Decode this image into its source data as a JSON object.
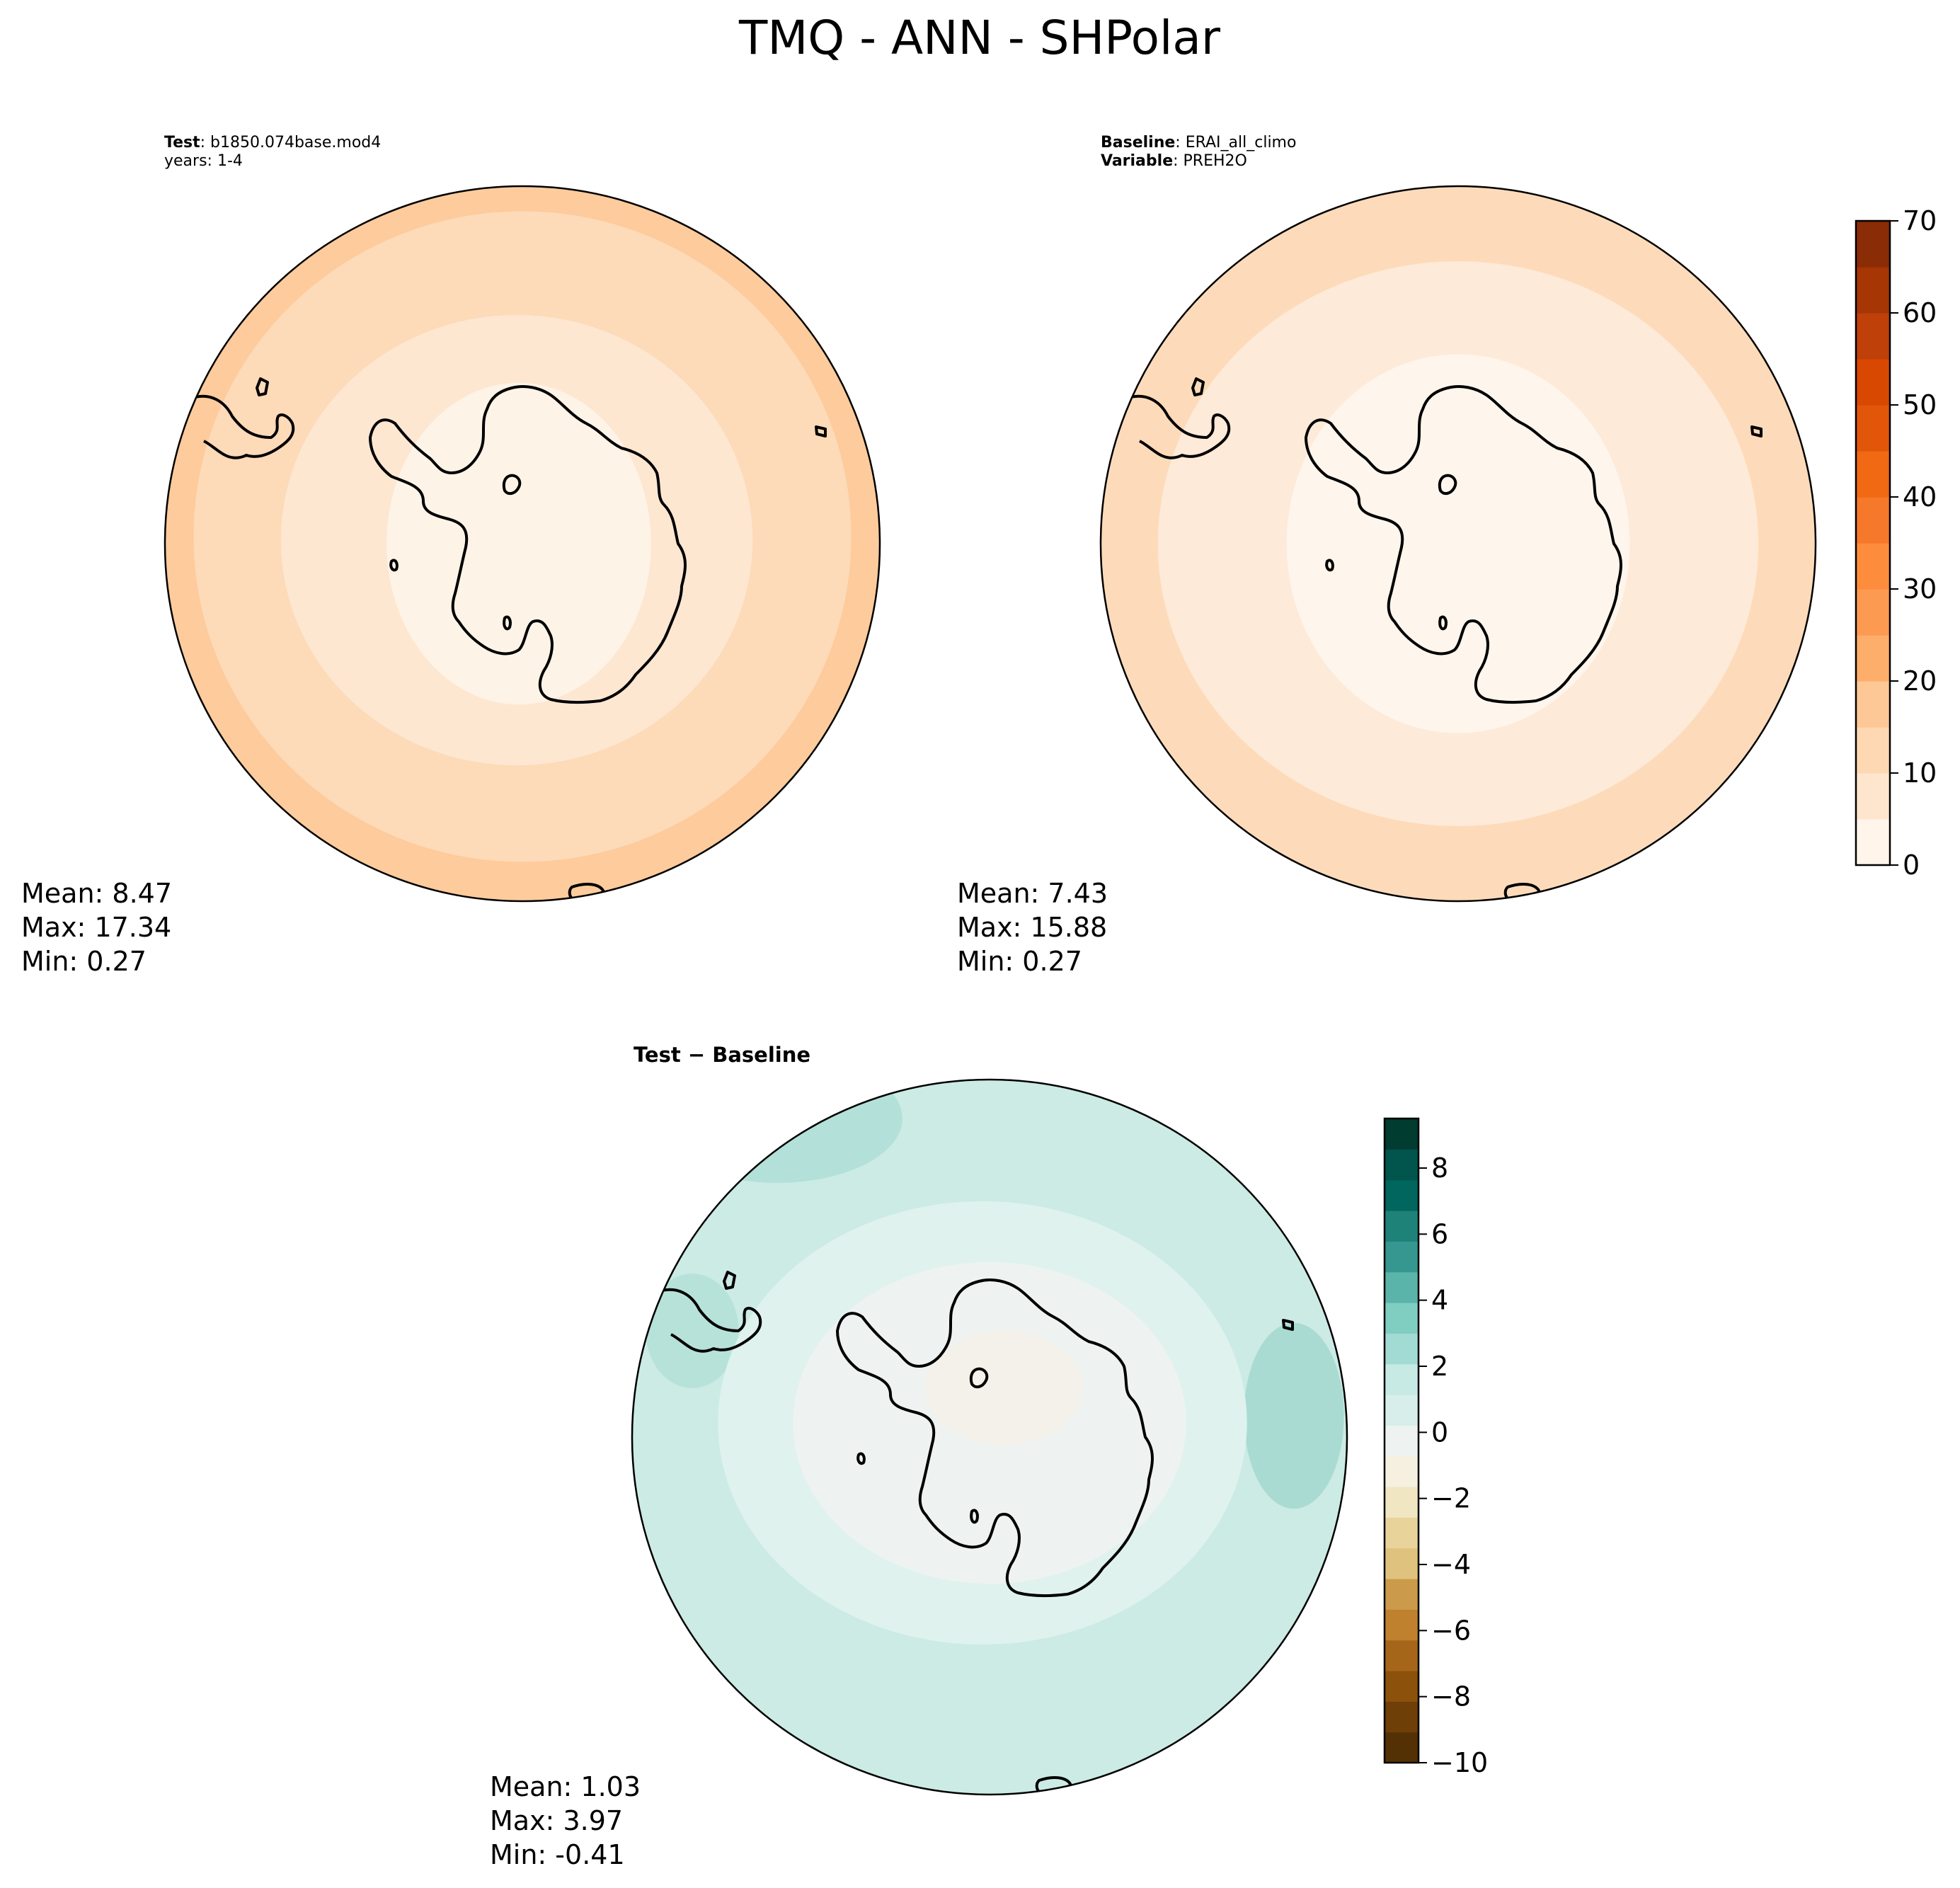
{
  "figure": {
    "title": "TMQ - ANN - SHPolar"
  },
  "chart_data": [
    {
      "type": "heatmap",
      "projection": "south-polar stereographic",
      "label_rows": [
        {
          "bold": "Test",
          "rest": ": b1850.074base.mod4"
        },
        {
          "bold": "",
          "rest": "years: 1-4"
        }
      ],
      "stats": {
        "mean": "8.47",
        "max": "17.34",
        "min": "0.27"
      },
      "stat_lines": [
        "Mean:  8.47",
        "Max: 17.34",
        "Min:  0.27"
      ],
      "contour_bands_outer_to_inner": [
        15,
        10,
        5,
        0
      ],
      "colorscale": "Oranges"
    },
    {
      "type": "heatmap",
      "projection": "south-polar stereographic",
      "label_rows": [
        {
          "bold": "Baseline",
          "rest": ": ERAI_all_climo"
        },
        {
          "bold": "Variable",
          "rest": ": PREH2O"
        }
      ],
      "stats": {
        "mean": "7.43",
        "max": "15.88",
        "min": "0.27"
      },
      "stat_lines": [
        "Mean:  7.43",
        "Max: 15.88",
        "Min:  0.27"
      ],
      "contour_bands_outer_to_inner": [
        10,
        5,
        0
      ],
      "colorscale": "Oranges",
      "colorbar": {
        "range": [
          0,
          70
        ],
        "ticks": [
          "0",
          "10",
          "20",
          "30",
          "40",
          "50",
          "60",
          "70"
        ],
        "colors": [
          "#fff5eb",
          "#fee6ce",
          "#fdd8b2",
          "#fdc895",
          "#fdae6b",
          "#fd9a52",
          "#fd8d3c",
          "#f6782b",
          "#f16913",
          "#e25609",
          "#d94801",
          "#c0400a",
          "#a63603",
          "#8a2c05"
        ]
      }
    },
    {
      "type": "heatmap",
      "projection": "south-polar stereographic",
      "label_rows": [
        {
          "bold": "Test − Baseline",
          "rest": ""
        }
      ],
      "stats": {
        "mean": "1.03",
        "max": "3.97",
        "min": "-0.41"
      },
      "stat_lines": [
        "Mean:  1.03",
        "Max:  3.97",
        "Min: -0.41"
      ],
      "colorscale": "BrBG",
      "colorbar": {
        "range": [
          -10,
          9.5
        ],
        "ticks": [
          "−10",
          "−8",
          "−6",
          "−4",
          "−2",
          "0",
          "2",
          "4",
          "6",
          "8"
        ],
        "colors": [
          "#543005",
          "#6f3f08",
          "#8c510a",
          "#a6661a",
          "#bf812d",
          "#cc9a4b",
          "#dfc27d",
          "#e8d39b",
          "#f1e6c2",
          "#f5f0df",
          "#eef3f2",
          "#d7eeea",
          "#c7eae5",
          "#a2dbd3",
          "#80cdc1",
          "#5ab4a9",
          "#35978f",
          "#1f8278",
          "#01665e",
          "#01554c",
          "#003c30"
        ]
      }
    }
  ]
}
